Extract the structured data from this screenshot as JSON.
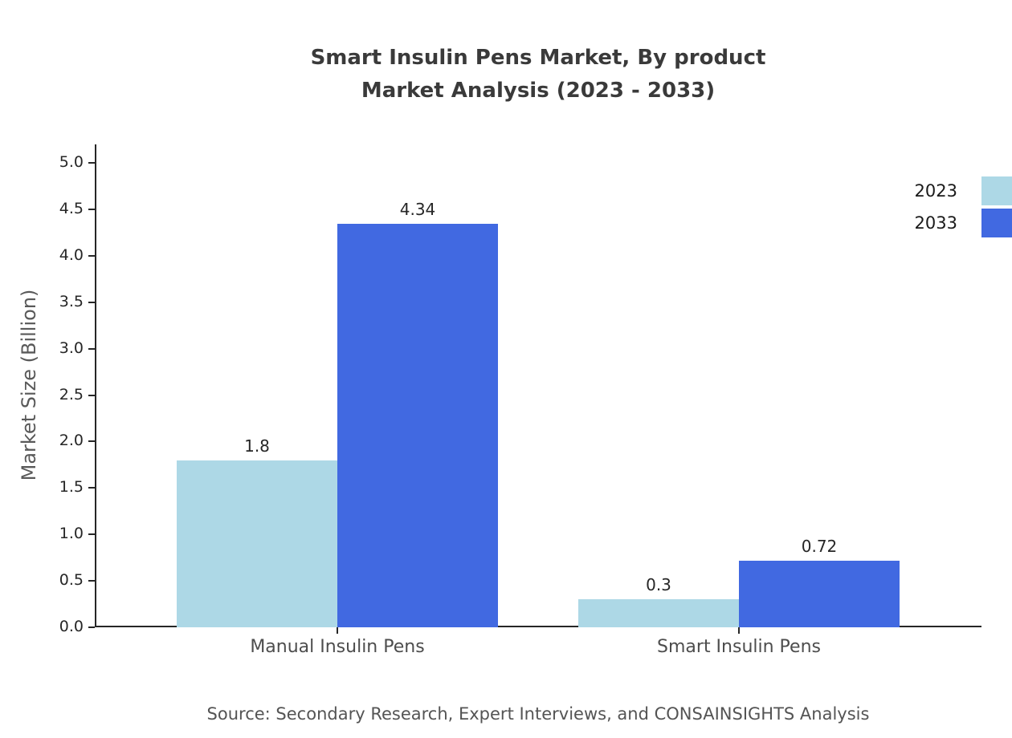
{
  "title": {
    "line1": "Smart Insulin Pens Market, By product",
    "line2": "Market Analysis (2023 - 2033)"
  },
  "source": "Source: Secondary Research, Expert Interviews, and CONSAINSIGHTS Analysis",
  "chart_data": {
    "type": "bar",
    "title": "Smart Insulin Pens Market, By product Market Analysis (2023 - 2033)",
    "xlabel": "",
    "ylabel": "Market Size (Billion)",
    "categories": [
      "Manual Insulin Pens",
      "Smart Insulin Pens"
    ],
    "series": [
      {
        "name": "2023",
        "color": "#ADD8E6",
        "values": [
          1.8,
          0.3
        ],
        "labels": [
          "1.8",
          "0.3"
        ]
      },
      {
        "name": "2033",
        "color": "#4169E1",
        "values": [
          4.34,
          0.72
        ],
        "labels": [
          "4.34",
          "0.72"
        ]
      }
    ],
    "ylim": [
      0,
      5
    ],
    "yticks": [
      "0.0",
      "0.5",
      "1.0",
      "1.5",
      "2.0",
      "2.5",
      "3.0",
      "3.5",
      "4.0",
      "4.5",
      "5.0"
    ],
    "grid": false,
    "legend_position": "top-right"
  }
}
